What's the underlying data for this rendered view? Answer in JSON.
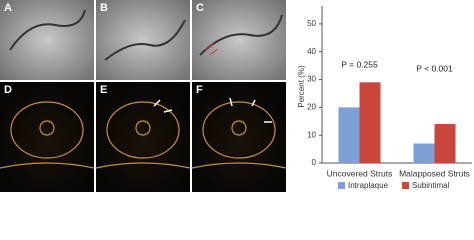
{
  "panels": [
    "A",
    "B",
    "C",
    "D",
    "E",
    "F"
  ],
  "chart_data": {
    "type": "bar",
    "y_label": "Percent (%)",
    "categories": [
      "Uncovered Struts",
      "Malapposed Struts"
    ],
    "series": [
      {
        "name": "Intraplaque",
        "color": "#7f9fd9",
        "values": [
          20,
          7
        ]
      },
      {
        "name": "Subintimal",
        "color": "#c9463d",
        "values": [
          29,
          14
        ]
      }
    ],
    "annotations": [
      "P = 0.255",
      "P < 0.001"
    ],
    "ylim": [
      0,
      55
    ],
    "yticks": [
      0,
      10,
      20,
      30,
      40,
      50
    ],
    "legend": "bottom"
  }
}
